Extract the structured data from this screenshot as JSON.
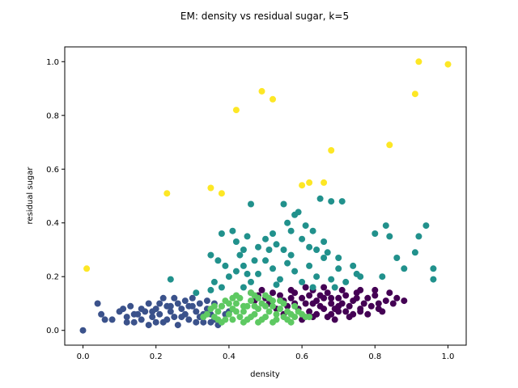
{
  "chart_data": {
    "type": "scatter",
    "title": "EM: density vs residual sugar, k=5",
    "xlabel": "density",
    "ylabel": "residual sugar",
    "xlim": [
      -0.05,
      1.05
    ],
    "ylim": [
      -0.055,
      1.055
    ],
    "xticks": [
      0.0,
      0.2,
      0.4,
      0.6,
      0.8,
      1.0
    ],
    "yticks": [
      0.0,
      0.2,
      0.4,
      0.6,
      0.8,
      1.0
    ],
    "tick_labels": [
      "0.0",
      "0.2",
      "0.4",
      "0.6",
      "0.8",
      "1.0"
    ],
    "grid": false,
    "legend": "none",
    "series": [
      {
        "cluster": 0,
        "color": "#440154",
        "points": [
          [
            0.46,
            0.14
          ],
          [
            0.48,
            0.13
          ],
          [
            0.5,
            0.12
          ],
          [
            0.52,
            0.14
          ],
          [
            0.54,
            0.13
          ],
          [
            0.55,
            0.11
          ],
          [
            0.57,
            0.12
          ],
          [
            0.58,
            0.14
          ],
          [
            0.6,
            0.12
          ],
          [
            0.61,
            0.1
          ],
          [
            0.62,
            0.13
          ],
          [
            0.63,
            0.15
          ],
          [
            0.64,
            0.11
          ],
          [
            0.65,
            0.09
          ],
          [
            0.66,
            0.12
          ],
          [
            0.67,
            0.14
          ],
          [
            0.68,
            0.1
          ],
          [
            0.69,
            0.08
          ],
          [
            0.7,
            0.12
          ],
          [
            0.71,
            0.1
          ],
          [
            0.72,
            0.13
          ],
          [
            0.73,
            0.09
          ],
          [
            0.74,
            0.11
          ],
          [
            0.75,
            0.14
          ],
          [
            0.76,
            0.08
          ],
          [
            0.77,
            0.1
          ],
          [
            0.78,
            0.12
          ],
          [
            0.79,
            0.09
          ],
          [
            0.8,
            0.13
          ],
          [
            0.81,
            0.1
          ],
          [
            0.82,
            0.07
          ],
          [
            0.83,
            0.11
          ],
          [
            0.53,
            0.08
          ],
          [
            0.56,
            0.09
          ],
          [
            0.59,
            0.08
          ],
          [
            0.62,
            0.07
          ],
          [
            0.64,
            0.06
          ],
          [
            0.66,
            0.08
          ],
          [
            0.68,
            0.06
          ],
          [
            0.7,
            0.07
          ],
          [
            0.72,
            0.07
          ],
          [
            0.74,
            0.06
          ],
          [
            0.76,
            0.07
          ],
          [
            0.63,
            0.05
          ],
          [
            0.67,
            0.05
          ],
          [
            0.51,
            0.1
          ],
          [
            0.49,
            0.15
          ],
          [
            0.57,
            0.15
          ],
          [
            0.61,
            0.16
          ],
          [
            0.66,
            0.16
          ],
          [
            0.71,
            0.15
          ],
          [
            0.76,
            0.15
          ],
          [
            0.8,
            0.15
          ],
          [
            0.84,
            0.14
          ],
          [
            0.85,
            0.1
          ],
          [
            0.86,
            0.12
          ],
          [
            0.88,
            0.11
          ],
          [
            0.6,
            0.04
          ],
          [
            0.55,
            0.06
          ],
          [
            0.69,
            0.04
          ],
          [
            0.73,
            0.05
          ],
          [
            0.78,
            0.06
          ],
          [
            0.47,
            0.11
          ],
          [
            0.58,
            0.1
          ],
          [
            0.65,
            0.13
          ],
          [
            0.7,
            0.09
          ],
          [
            0.75,
            0.12
          ],
          [
            0.81,
            0.08
          ],
          [
            0.63,
            0.1
          ],
          [
            0.68,
            0.12
          ]
        ]
      },
      {
        "cluster": 1,
        "color": "#3b528b",
        "points": [
          [
            0.0,
            0.0
          ],
          [
            0.04,
            0.1
          ],
          [
            0.05,
            0.06
          ],
          [
            0.06,
            0.04
          ],
          [
            0.08,
            0.04
          ],
          [
            0.1,
            0.07
          ],
          [
            0.11,
            0.08
          ],
          [
            0.12,
            0.05
          ],
          [
            0.13,
            0.09
          ],
          [
            0.14,
            0.03
          ],
          [
            0.15,
            0.06
          ],
          [
            0.16,
            0.04
          ],
          [
            0.17,
            0.07
          ],
          [
            0.18,
            0.02
          ],
          [
            0.19,
            0.05
          ],
          [
            0.2,
            0.08
          ],
          [
            0.21,
            0.06
          ],
          [
            0.22,
            0.03
          ],
          [
            0.23,
            0.09
          ],
          [
            0.24,
            0.07
          ],
          [
            0.25,
            0.05
          ],
          [
            0.26,
            0.1
          ],
          [
            0.27,
            0.08
          ],
          [
            0.28,
            0.06
          ],
          [
            0.29,
            0.04
          ],
          [
            0.3,
            0.09
          ],
          [
            0.31,
            0.07
          ],
          [
            0.32,
            0.05
          ],
          [
            0.33,
            0.03
          ],
          [
            0.34,
            0.08
          ],
          [
            0.35,
            0.06
          ],
          [
            0.36,
            0.04
          ],
          [
            0.37,
            0.02
          ],
          [
            0.22,
            0.12
          ],
          [
            0.25,
            0.12
          ],
          [
            0.28,
            0.11
          ],
          [
            0.3,
            0.12
          ],
          [
            0.32,
            0.1
          ],
          [
            0.18,
            0.1
          ],
          [
            0.2,
            0.03
          ],
          [
            0.23,
            0.04
          ],
          [
            0.26,
            0.02
          ],
          [
            0.29,
            0.09
          ],
          [
            0.31,
            0.03
          ],
          [
            0.34,
            0.11
          ],
          [
            0.36,
            0.1
          ],
          [
            0.38,
            0.09
          ],
          [
            0.39,
            0.06
          ],
          [
            0.24,
            0.09
          ],
          [
            0.27,
            0.05
          ],
          [
            0.33,
            0.06
          ],
          [
            0.35,
            0.03
          ],
          [
            0.21,
            0.1
          ],
          [
            0.19,
            0.07
          ],
          [
            0.16,
            0.08
          ],
          [
            0.14,
            0.06
          ],
          [
            0.12,
            0.03
          ],
          [
            0.4,
            0.07
          ]
        ]
      },
      {
        "cluster": 2,
        "color": "#21918c",
        "points": [
          [
            0.24,
            0.19
          ],
          [
            0.36,
            0.18
          ],
          [
            0.4,
            0.2
          ],
          [
            0.42,
            0.22
          ],
          [
            0.44,
            0.24
          ],
          [
            0.46,
            0.18
          ],
          [
            0.48,
            0.21
          ],
          [
            0.5,
            0.26
          ],
          [
            0.52,
            0.23
          ],
          [
            0.54,
            0.19
          ],
          [
            0.56,
            0.25
          ],
          [
            0.58,
            0.22
          ],
          [
            0.6,
            0.18
          ],
          [
            0.62,
            0.24
          ],
          [
            0.64,
            0.2
          ],
          [
            0.66,
            0.27
          ],
          [
            0.68,
            0.19
          ],
          [
            0.7,
            0.23
          ],
          [
            0.72,
            0.18
          ],
          [
            0.74,
            0.24
          ],
          [
            0.76,
            0.2
          ],
          [
            0.38,
            0.36
          ],
          [
            0.41,
            0.37
          ],
          [
            0.42,
            0.33
          ],
          [
            0.44,
            0.3
          ],
          [
            0.45,
            0.35
          ],
          [
            0.46,
            0.47
          ],
          [
            0.48,
            0.31
          ],
          [
            0.5,
            0.34
          ],
          [
            0.51,
            0.3
          ],
          [
            0.52,
            0.36
          ],
          [
            0.53,
            0.32
          ],
          [
            0.55,
            0.47
          ],
          [
            0.56,
            0.4
          ],
          [
            0.57,
            0.37
          ],
          [
            0.58,
            0.43
          ],
          [
            0.59,
            0.44
          ],
          [
            0.6,
            0.34
          ],
          [
            0.61,
            0.39
          ],
          [
            0.62,
            0.31
          ],
          [
            0.63,
            0.37
          ],
          [
            0.65,
            0.49
          ],
          [
            0.66,
            0.33
          ],
          [
            0.68,
            0.48
          ],
          [
            0.71,
            0.48
          ],
          [
            0.8,
            0.36
          ],
          [
            0.83,
            0.39
          ],
          [
            0.84,
            0.35
          ],
          [
            0.86,
            0.27
          ],
          [
            0.88,
            0.23
          ],
          [
            0.91,
            0.29
          ],
          [
            0.94,
            0.39
          ],
          [
            0.96,
            0.23
          ],
          [
            0.96,
            0.19
          ],
          [
            0.35,
            0.28
          ],
          [
            0.39,
            0.24
          ],
          [
            0.43,
            0.28
          ],
          [
            0.47,
            0.26
          ],
          [
            0.55,
            0.3
          ],
          [
            0.67,
            0.29
          ],
          [
            0.75,
            0.21
          ],
          [
            0.82,
            0.2
          ],
          [
            0.92,
            0.35
          ],
          [
            0.31,
            0.14
          ],
          [
            0.35,
            0.15
          ],
          [
            0.38,
            0.16
          ],
          [
            0.44,
            0.16
          ],
          [
            0.53,
            0.17
          ],
          [
            0.63,
            0.16
          ],
          [
            0.69,
            0.16
          ],
          [
            0.37,
            0.26
          ],
          [
            0.45,
            0.21
          ],
          [
            0.57,
            0.28
          ],
          [
            0.64,
            0.3
          ],
          [
            0.7,
            0.27
          ]
        ]
      },
      {
        "cluster": 3,
        "color": "#5ec962",
        "points": [
          [
            0.34,
            0.06
          ],
          [
            0.35,
            0.08
          ],
          [
            0.36,
            0.05
          ],
          [
            0.37,
            0.07
          ],
          [
            0.38,
            0.09
          ],
          [
            0.39,
            0.04
          ],
          [
            0.4,
            0.06
          ],
          [
            0.41,
            0.08
          ],
          [
            0.42,
            0.1
          ],
          [
            0.43,
            0.05
          ],
          [
            0.44,
            0.07
          ],
          [
            0.45,
            0.09
          ],
          [
            0.46,
            0.11
          ],
          [
            0.47,
            0.06
          ],
          [
            0.48,
            0.08
          ],
          [
            0.49,
            0.1
          ],
          [
            0.5,
            0.05
          ],
          [
            0.51,
            0.07
          ],
          [
            0.52,
            0.09
          ],
          [
            0.53,
            0.06
          ],
          [
            0.54,
            0.08
          ],
          [
            0.55,
            0.05
          ],
          [
            0.56,
            0.07
          ],
          [
            0.57,
            0.06
          ],
          [
            0.58,
            0.05
          ],
          [
            0.59,
            0.07
          ],
          [
            0.6,
            0.06
          ],
          [
            0.61,
            0.05
          ],
          [
            0.37,
            0.04
          ],
          [
            0.39,
            0.11
          ],
          [
            0.41,
            0.04
          ],
          [
            0.43,
            0.12
          ],
          [
            0.45,
            0.04
          ],
          [
            0.47,
            0.13
          ],
          [
            0.49,
            0.04
          ],
          [
            0.51,
            0.12
          ],
          [
            0.53,
            0.04
          ],
          [
            0.55,
            0.1
          ],
          [
            0.57,
            0.03
          ],
          [
            0.42,
            0.13
          ],
          [
            0.44,
            0.03
          ],
          [
            0.46,
            0.14
          ],
          [
            0.48,
            0.03
          ],
          [
            0.5,
            0.13
          ],
          [
            0.52,
            0.03
          ],
          [
            0.4,
            0.1
          ],
          [
            0.36,
            0.09
          ],
          [
            0.33,
            0.05
          ],
          [
            0.62,
            0.05
          ],
          [
            0.44,
            0.09
          ],
          [
            0.48,
            0.12
          ],
          [
            0.52,
            0.11
          ],
          [
            0.46,
            0.05
          ],
          [
            0.42,
            0.07
          ],
          [
            0.5,
            0.09
          ],
          [
            0.54,
            0.11
          ],
          [
            0.38,
            0.03
          ],
          [
            0.56,
            0.04
          ],
          [
            0.58,
            0.09
          ],
          [
            0.41,
            0.12
          ],
          [
            0.47,
            0.09
          ]
        ]
      },
      {
        "cluster": 4,
        "color": "#fde725",
        "points": [
          [
            0.01,
            0.23
          ],
          [
            0.23,
            0.51
          ],
          [
            0.35,
            0.53
          ],
          [
            0.38,
            0.51
          ],
          [
            0.42,
            0.82
          ],
          [
            0.49,
            0.89
          ],
          [
            0.52,
            0.86
          ],
          [
            0.6,
            0.54
          ],
          [
            0.62,
            0.55
          ],
          [
            0.66,
            0.55
          ],
          [
            0.68,
            0.67
          ],
          [
            0.84,
            0.69
          ],
          [
            0.91,
            0.88
          ],
          [
            0.92,
            1.0
          ],
          [
            1.0,
            0.99
          ]
        ]
      }
    ]
  }
}
